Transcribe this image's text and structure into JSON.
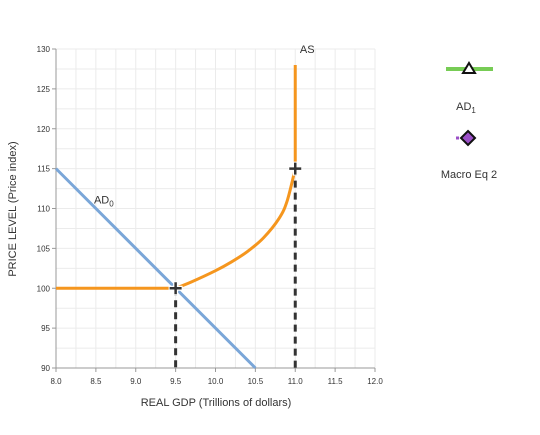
{
  "chart_data": {
    "type": "line",
    "xlabel": "REAL GDP (Trillions of dollars)",
    "ylabel": "PRICE LEVEL (Price index)",
    "xlim": [
      8.0,
      12.0
    ],
    "ylim": [
      90,
      130
    ],
    "x_ticks": [
      "8.0",
      "8.5",
      "9.0",
      "9.5",
      "10.0",
      "10.5",
      "11.0",
      "11.5",
      "12.0"
    ],
    "y_ticks": [
      "90",
      "95",
      "100",
      "105",
      "110",
      "115",
      "120",
      "125",
      "130"
    ],
    "grid": true,
    "series": [
      {
        "name": "AD0",
        "label_main": "AD",
        "label_sub": "0",
        "color": "#7aa6d8",
        "points": [
          [
            8.0,
            115
          ],
          [
            10.5,
            90
          ]
        ]
      },
      {
        "name": "AS",
        "label_main": "AS",
        "label_sub": "",
        "color": "#f5961e",
        "points": [
          [
            8.0,
            100
          ],
          [
            9.5,
            100
          ],
          [
            9.7,
            100.8
          ],
          [
            10.0,
            102.2
          ],
          [
            10.2,
            103.3
          ],
          [
            10.4,
            104.6
          ],
          [
            10.6,
            106.3
          ],
          [
            10.8,
            108.8
          ],
          [
            10.9,
            111.0
          ],
          [
            11.0,
            115
          ],
          [
            11.0,
            128
          ]
        ]
      }
    ],
    "equilibrium_points": [
      {
        "x": 9.5,
        "y": 100
      },
      {
        "x": 11.0,
        "y": 115
      }
    ],
    "dashed_drop_lines": [
      {
        "x": 9.5,
        "from_y": 100,
        "to_y": 90
      },
      {
        "x": 11.0,
        "from_y": 115,
        "to_y": 90
      }
    ]
  },
  "legend": {
    "items": [
      {
        "label_main": "AD",
        "label_sub": "1",
        "line_color": "#77cc55",
        "marker": "triangle"
      },
      {
        "label_main": "Macro Eq 2",
        "label_sub": "",
        "line_color": "#9b4fc7",
        "marker": "diamond"
      }
    ]
  }
}
